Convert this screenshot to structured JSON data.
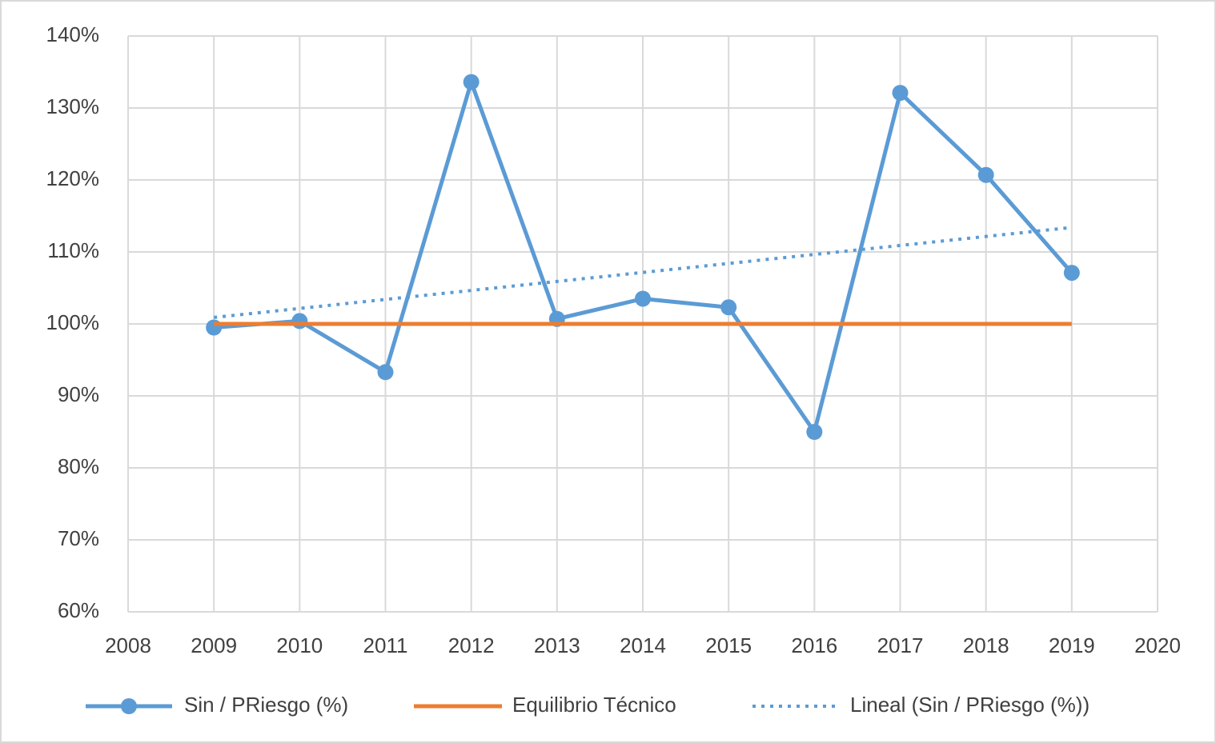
{
  "chart_data": {
    "type": "line",
    "x": [
      2009,
      2010,
      2011,
      2012,
      2013,
      2014,
      2015,
      2016,
      2017,
      2018,
      2019
    ],
    "series": [
      {
        "name": "Sin / PRiesgo (%)",
        "color": "#5b9bd5",
        "marker": true,
        "line_style": "solid",
        "values": [
          99.5,
          100.4,
          93.3,
          133.6,
          100.7,
          103.5,
          102.3,
          85,
          132.1,
          120.7,
          107.1
        ]
      },
      {
        "name": "Equilibrio Técnico",
        "color": "#ed7d31",
        "marker": false,
        "line_style": "solid",
        "values": [
          100,
          100,
          100,
          100,
          100,
          100,
          100,
          100,
          100,
          100,
          100
        ]
      },
      {
        "name": "Lineal (Sin / PRiesgo (%))",
        "color": "#5b9bd5",
        "marker": false,
        "line_style": "dotted",
        "values": [
          100.9,
          102.15,
          103.4,
          104.65,
          105.9,
          107.15,
          108.4,
          109.65,
          110.9,
          112.15,
          113.4
        ]
      }
    ],
    "xlim": [
      2008,
      2020
    ],
    "xticks": [
      2008,
      2009,
      2010,
      2011,
      2012,
      2013,
      2014,
      2015,
      2016,
      2017,
      2018,
      2019,
      2020
    ],
    "ylim": [
      60,
      140
    ],
    "yticks": [
      {
        "value": 60,
        "label": "60%"
      },
      {
        "value": 70,
        "label": "70%"
      },
      {
        "value": 80,
        "label": "80%"
      },
      {
        "value": 90,
        "label": "90%"
      },
      {
        "value": 100,
        "label": "100%"
      },
      {
        "value": 110,
        "label": "110%"
      },
      {
        "value": 120,
        "label": "120%"
      },
      {
        "value": 130,
        "label": "130%"
      },
      {
        "value": 140,
        "label": "140%"
      }
    ],
    "grid": true,
    "legend": "bottom"
  }
}
